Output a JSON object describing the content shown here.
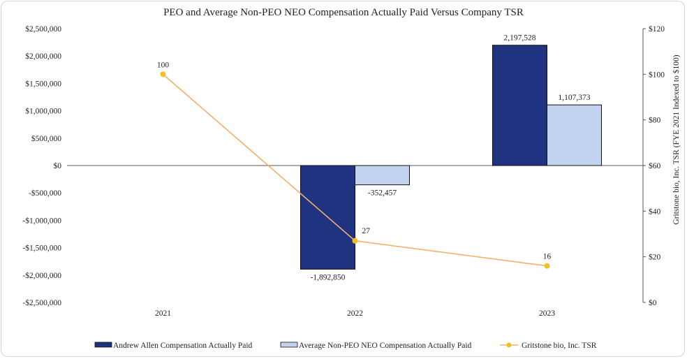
{
  "chart_data": {
    "type": "bar+line",
    "title": "PEO and Average Non-PEO NEO Compensation Actually Paid Versus Company TSR",
    "categories": [
      "2021",
      "2022",
      "2023"
    ],
    "series": [
      {
        "name": "Andrew Allen Compensation Actually Paid",
        "kind": "bar",
        "axis": "left",
        "color": "#1f3380",
        "values": [
          0,
          -1892850,
          2197528
        ],
        "labels": [
          "",
          "-1,892,850",
          "2,197,528"
        ]
      },
      {
        "name": "Average Non-PEO NEO Compensation Actually Paid",
        "kind": "bar",
        "axis": "left",
        "color": "#c2d3ef",
        "values": [
          0,
          -352457,
          1107373
        ],
        "labels": [
          "",
          "-352,457",
          "1,107,373"
        ]
      },
      {
        "name": "Gritstone bio, Inc. TSR",
        "kind": "line",
        "axis": "right",
        "color": "#f2b06b",
        "marker_color": "#f0c020",
        "values": [
          100,
          27,
          16
        ],
        "labels": [
          "100",
          "27",
          "16"
        ]
      }
    ],
    "y_left": {
      "ylim": [
        -2500000,
        2500000
      ],
      "ticks": [
        2500000,
        2000000,
        1500000,
        1000000,
        500000,
        0,
        -500000,
        -1000000,
        -1500000,
        -2000000,
        -2500000
      ],
      "tick_labels": [
        "$2,500,000",
        "$2,000,000",
        "$1,500,000",
        "$1,000,000",
        "$500,000",
        "$0",
        "-$500,000",
        "-$1,000,000",
        "-$1,500,000",
        "-$2,000,000",
        "-$2,500,000"
      ]
    },
    "y_right": {
      "label": "Gritstone bio, Inc. TSR (FYE 2021 Indexed to $100)",
      "ylim": [
        0,
        120
      ],
      "ticks": [
        120,
        100,
        80,
        60,
        40,
        20,
        0
      ],
      "tick_labels": [
        "$120",
        "$100",
        "$80",
        "$60",
        "$40",
        "$20",
        "$0"
      ]
    },
    "grid": false,
    "legend_position": "bottom"
  }
}
